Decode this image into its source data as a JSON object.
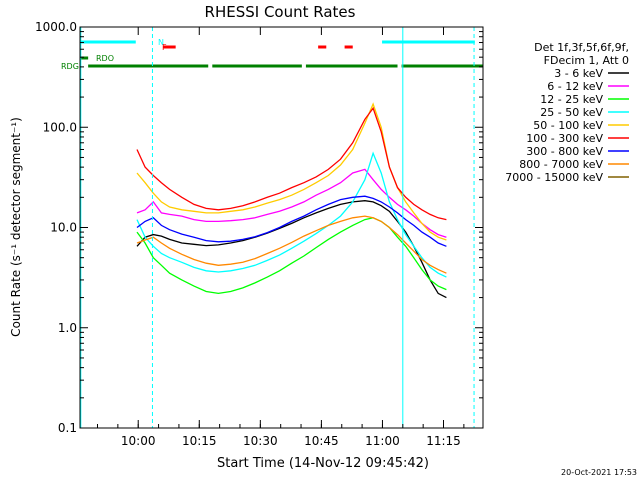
{
  "chart_data": {
    "type": "line",
    "title": "RHESSI Count Rates",
    "xlabel": "Start Time (14-Nov-12 09:45:42)",
    "ylabel": "Count Rate (s⁻¹ detector segment⁻¹)",
    "x_unit": "minutes after 09:45:42",
    "xlim": [
      0,
      99
    ],
    "ylim": [
      0.1,
      1000
    ],
    "yscale": "log",
    "x_tick_labels": [
      {
        "value": 14.3,
        "label": "10:00"
      },
      {
        "value": 29.3,
        "label": "10:15"
      },
      {
        "value": 44.3,
        "label": "10:30"
      },
      {
        "value": 59.3,
        "label": "10:45"
      },
      {
        "value": 74.3,
        "label": "11:00"
      },
      {
        "value": 89.3,
        "label": "11:15"
      }
    ],
    "y_tick_labels": [
      {
        "value": 0.1,
        "label": "0.1"
      },
      {
        "value": 1,
        "label": "1.0"
      },
      {
        "value": 10,
        "label": "10.0"
      },
      {
        "value": 100,
        "label": "100.0"
      },
      {
        "value": 1000,
        "label": "1000.0"
      }
    ],
    "legend": {
      "position": "outside-right",
      "header": [
        "Det 1f,3f,5f,6f,9f,",
        "FDecim 1, Att 0"
      ]
    },
    "x": [
      14,
      16,
      18,
      20,
      22,
      25,
      28,
      31,
      34,
      37,
      40,
      43,
      46,
      49,
      52,
      55,
      58,
      61,
      64,
      67,
      70,
      72,
      74,
      76,
      78,
      80,
      82,
      84,
      86,
      88,
      90,
      92,
      94
    ],
    "series": [
      {
        "name": "3 - 6 keV",
        "color": "#000000",
        "values": [
          6.5,
          8,
          8.5,
          8.2,
          7.6,
          7.0,
          6.8,
          6.6,
          6.7,
          7.0,
          7.4,
          8.0,
          8.8,
          9.8,
          11,
          12.5,
          14,
          15.5,
          17,
          18,
          18.5,
          18,
          16.5,
          14.5,
          11.5,
          9,
          6.5,
          4.5,
          3.0,
          2.2,
          2.0,
          null,
          null
        ]
      },
      {
        "name": "6 - 12 keV",
        "color": "#ff00ff",
        "values": [
          14,
          15,
          18,
          14,
          13.5,
          13,
          12,
          11.5,
          11.5,
          11.7,
          12,
          12.5,
          13.5,
          14.5,
          16,
          18,
          21,
          24,
          28,
          35,
          38,
          30,
          24,
          20,
          17,
          15,
          13,
          11,
          9.5,
          8.5,
          8,
          null,
          null
        ]
      },
      {
        "name": "12 - 25 keV",
        "color": "#00ff00",
        "values": [
          9,
          7,
          5,
          4.2,
          3.5,
          3.0,
          2.6,
          2.3,
          2.2,
          2.3,
          2.5,
          2.8,
          3.2,
          3.7,
          4.4,
          5.2,
          6.3,
          7.6,
          9.0,
          10.5,
          12,
          12.5,
          11.5,
          10,
          8,
          6.5,
          5,
          3.8,
          3.0,
          2.6,
          2.4,
          null,
          null
        ]
      },
      {
        "name": "25 - 50 keV",
        "color": "#00ffff",
        "values": [
          12,
          8,
          6.5,
          5.5,
          5.0,
          4.5,
          4.0,
          3.7,
          3.6,
          3.7,
          3.9,
          4.2,
          4.7,
          5.3,
          6.2,
          7.3,
          8.7,
          10.5,
          13,
          18,
          30,
          55,
          35,
          18,
          12,
          8.5,
          6.5,
          5.0,
          4.0,
          3.5,
          3.2,
          null,
          null
        ]
      },
      {
        "name": "50 - 100 keV",
        "color": "#ffcc00",
        "values": [
          35,
          28,
          22,
          18,
          16,
          15,
          14.5,
          14,
          14,
          14.5,
          15,
          16,
          17.5,
          19,
          21,
          24,
          28,
          33,
          42,
          60,
          110,
          170,
          100,
          40,
          25,
          18,
          14,
          11,
          9,
          8,
          7.5,
          null,
          null
        ]
      },
      {
        "name": "100 - 300 keV",
        "color": "#ff0000",
        "values": [
          60,
          40,
          33,
          28,
          24,
          20,
          17,
          15.5,
          15,
          15.5,
          16.5,
          18,
          20,
          22,
          25,
          28,
          32,
          38,
          48,
          70,
          120,
          155,
          90,
          40,
          25,
          20,
          17,
          15,
          13.5,
          12.5,
          12,
          null,
          null
        ]
      },
      {
        "name": "300 - 800 keV",
        "color": "#0000ff",
        "values": [
          10,
          11.5,
          12.5,
          10.5,
          9.5,
          8.6,
          8.0,
          7.4,
          7.2,
          7.3,
          7.6,
          8.1,
          8.9,
          10,
          11.5,
          13,
          15,
          17,
          19,
          20,
          20.5,
          19.5,
          18,
          16,
          14,
          12,
          10.5,
          9,
          8,
          7,
          6.5,
          null,
          null
        ]
      },
      {
        "name": "800 - 7000 keV",
        "color": "#ff8800",
        "values": [
          7,
          7.5,
          8,
          7,
          6.2,
          5.4,
          4.8,
          4.4,
          4.2,
          4.3,
          4.5,
          4.9,
          5.5,
          6.2,
          7.1,
          8.2,
          9.3,
          10.5,
          11.5,
          12.5,
          13,
          12.5,
          11.5,
          10,
          8.5,
          7,
          5.8,
          4.8,
          4.2,
          3.8,
          3.5,
          null,
          null
        ]
      },
      {
        "name": "7000 - 15000 keV",
        "color": "#806000",
        "values": [
          null,
          null,
          null,
          null,
          null,
          null,
          null,
          null,
          null,
          null,
          null,
          null,
          null,
          null,
          null,
          null,
          null,
          null,
          null,
          null,
          null,
          null,
          null,
          null,
          null,
          null,
          null,
          null,
          null,
          null,
          null,
          null,
          null
        ]
      }
    ],
    "flag_bars": [
      {
        "label": "N",
        "color": "#00ffff",
        "segments": [
          [
            0,
            13.7
          ],
          [
            74.2,
            97
          ]
        ]
      },
      {
        "label": "F",
        "color": "#ff0000",
        "segments": [
          [
            20.5,
            23.5
          ],
          [
            58.5,
            60.5
          ],
          [
            65,
            67
          ]
        ]
      },
      {
        "label": "RDO",
        "color": "#008000",
        "segments": [
          [
            0,
            2
          ]
        ]
      },
      {
        "label": "RDG",
        "color": "#008000",
        "segments": [
          [
            2,
            31.5
          ],
          [
            32.5,
            54.5
          ],
          [
            55.5,
            78
          ],
          [
            79,
            99
          ]
        ]
      }
    ],
    "vertical_lines": [
      {
        "x": 0.2,
        "color": "#00ffff",
        "style": "solid"
      },
      {
        "x": 17.8,
        "color": "#00ffff",
        "style": "dashed"
      },
      {
        "x": 79.3,
        "color": "#00ffff",
        "style": "solid"
      },
      {
        "x": 96.8,
        "color": "#00ffff",
        "style": "dashed"
      }
    ],
    "grid": false
  },
  "footer": {
    "timestamp": "20-Oct-2021 17:53"
  }
}
